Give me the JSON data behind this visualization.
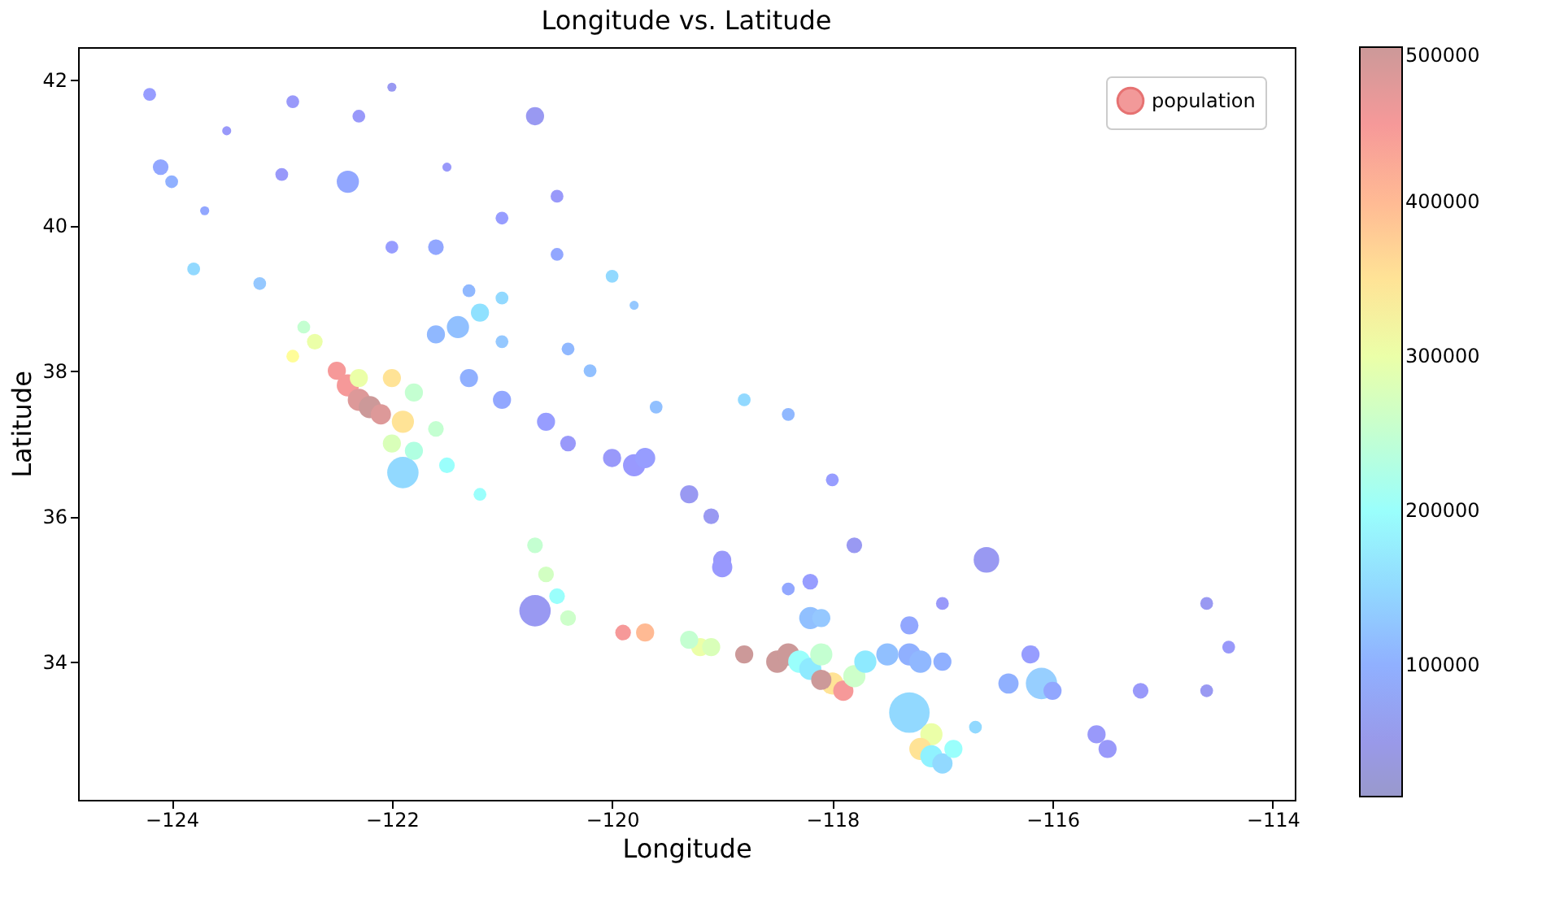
{
  "chart_data": {
    "type": "bubble",
    "title": "Longitude vs. Latitude",
    "xlabel": "Longitude",
    "ylabel": "Latitude",
    "xlim": [
      -124.85,
      -113.8
    ],
    "xticks": [
      -124,
      -122,
      -120,
      -118,
      -116,
      -114
    ],
    "ylim": [
      32.1,
      42.45
    ],
    "yticks": [
      34,
      36,
      38,
      40,
      42
    ],
    "clim": [
      15000,
      500000
    ],
    "cticks": [
      100000,
      200000,
      300000,
      400000,
      500000
    ],
    "grid": false,
    "legend": "top right",
    "marker": "circle",
    "series": [
      {
        "name": "population",
        "x": [
          -124.2,
          -124.1,
          -124.0,
          -123.8,
          -123.5,
          -123.2,
          -122.9,
          -122.4,
          -122.3,
          -122.0,
          -121.6,
          -121.5,
          -121.3,
          -120.7,
          -120.5,
          -120.0,
          -119.8,
          -121.4,
          -121.2,
          -121.6,
          -121.0,
          -121.0,
          -122.4,
          -122.3,
          -122.2,
          -122.1,
          -121.9,
          -122.0,
          -122.5,
          -122.7,
          -122.9,
          -122.3,
          -122.0,
          -121.8,
          -121.6,
          -122.8,
          -121.9,
          -121.8,
          -121.5,
          -121.2,
          -121.3,
          -121.0,
          -120.6,
          -120.4,
          -120.0,
          -119.8,
          -119.7,
          -119.3,
          -119.1,
          -119.0,
          -119.0,
          -119.6,
          -120.2,
          -120.4,
          -118.8,
          -118.4,
          -118.0,
          -117.8,
          -118.2,
          -118.4,
          -120.7,
          -120.6,
          -120.5,
          -120.7,
          -120.4,
          -119.9,
          -119.7,
          -119.2,
          -118.5,
          -118.4,
          -118.3,
          -118.2,
          -118.1,
          -118.0,
          -117.9,
          -117.8,
          -117.7,
          -117.5,
          -117.3,
          -117.2,
          -117.0,
          -118.2,
          -118.1,
          -117.3,
          -117.0,
          -116.6,
          -116.2,
          -116.1,
          -116.4,
          -116.0,
          -115.6,
          -115.5,
          -114.6,
          -114.6,
          -114.4,
          -115.2,
          -118.8,
          -118.1,
          -117.3,
          -117.1,
          -117.2,
          -117.1,
          -117.0,
          -116.9,
          -116.7,
          -119.3,
          -119.1,
          -123.0,
          -122.0,
          -121.0,
          -120.5,
          -123.7
        ],
        "values": [
          41.8,
          40.8,
          40.6,
          39.4,
          41.3,
          39.2,
          41.7,
          40.6,
          41.5,
          39.7,
          39.7,
          40.8,
          39.1,
          41.5,
          40.4,
          39.3,
          38.9,
          38.6,
          38.8,
          38.5,
          38.4,
          39.0,
          37.8,
          37.6,
          37.5,
          37.4,
          37.3,
          37.0,
          38.0,
          38.4,
          38.2,
          37.9,
          37.9,
          37.7,
          37.2,
          38.6,
          36.6,
          36.9,
          36.7,
          36.3,
          37.9,
          37.6,
          37.3,
          37.0,
          36.8,
          36.7,
          36.8,
          36.3,
          36.0,
          35.4,
          35.3,
          37.5,
          38.0,
          38.3,
          37.6,
          37.4,
          36.5,
          35.6,
          35.1,
          35.0,
          35.6,
          35.2,
          34.9,
          34.7,
          34.6,
          34.4,
          34.4,
          34.2,
          34.0,
          34.1,
          34.0,
          33.9,
          34.1,
          33.7,
          33.6,
          33.8,
          34.0,
          34.1,
          34.1,
          34.0,
          34.0,
          34.6,
          34.6,
          34.5,
          34.8,
          35.4,
          34.1,
          33.7,
          33.7,
          33.6,
          33.0,
          32.8,
          34.8,
          33.6,
          34.2,
          33.6,
          34.1,
          33.75,
          33.3,
          33.0,
          32.8,
          32.7,
          32.6,
          32.8,
          33.1,
          34.3,
          34.2,
          40.7,
          41.9,
          40.1,
          39.6,
          40.2
        ],
        "cvalues": [
          80000,
          90000,
          100000,
          150000,
          70000,
          130000,
          70000,
          90000,
          70000,
          80000,
          90000,
          70000,
          110000,
          60000,
          70000,
          150000,
          130000,
          120000,
          160000,
          110000,
          130000,
          150000,
          450000,
          480000,
          500000,
          480000,
          350000,
          280000,
          450000,
          300000,
          320000,
          300000,
          350000,
          250000,
          250000,
          250000,
          150000,
          230000,
          200000,
          200000,
          100000,
          90000,
          80000,
          70000,
          70000,
          75000,
          80000,
          60000,
          60000,
          70000,
          75000,
          120000,
          120000,
          110000,
          150000,
          110000,
          80000,
          60000,
          80000,
          90000,
          250000,
          270000,
          200000,
          60000,
          260000,
          450000,
          400000,
          300000,
          500000,
          500000,
          200000,
          170000,
          250000,
          350000,
          450000,
          260000,
          170000,
          120000,
          100000,
          110000,
          100000,
          120000,
          130000,
          90000,
          70000,
          60000,
          80000,
          140000,
          100000,
          90000,
          70000,
          70000,
          60000,
          60000,
          70000,
          70000,
          500000,
          500000,
          150000,
          300000,
          350000,
          180000,
          150000,
          200000,
          150000,
          250000,
          280000,
          70000,
          60000,
          80000,
          90000,
          90000
        ],
        "sizes": [
          0.1,
          0.15,
          0.1,
          0.1,
          0.05,
          0.1,
          0.1,
          0.3,
          0.1,
          0.1,
          0.15,
          0.05,
          0.1,
          0.2,
          0.1,
          0.1,
          0.05,
          0.3,
          0.2,
          0.2,
          0.1,
          0.1,
          0.3,
          0.3,
          0.3,
          0.25,
          0.3,
          0.2,
          0.2,
          0.15,
          0.1,
          0.2,
          0.2,
          0.2,
          0.15,
          0.1,
          0.6,
          0.2,
          0.15,
          0.1,
          0.2,
          0.2,
          0.2,
          0.15,
          0.2,
          0.3,
          0.25,
          0.2,
          0.15,
          0.2,
          0.25,
          0.1,
          0.1,
          0.1,
          0.1,
          0.1,
          0.1,
          0.15,
          0.15,
          0.1,
          0.15,
          0.15,
          0.15,
          0.6,
          0.15,
          0.15,
          0.2,
          0.2,
          0.3,
          0.3,
          0.3,
          0.3,
          0.3,
          0.3,
          0.25,
          0.3,
          0.3,
          0.3,
          0.3,
          0.3,
          0.2,
          0.3,
          0.2,
          0.2,
          0.1,
          0.4,
          0.2,
          0.6,
          0.25,
          0.2,
          0.2,
          0.2,
          0.1,
          0.1,
          0.1,
          0.15,
          0.2,
          0.25,
          1.0,
          0.3,
          0.3,
          0.3,
          0.25,
          0.2,
          0.1,
          0.2,
          0.2,
          0.1,
          0.05,
          0.1,
          0.1,
          0.05
        ]
      }
    ]
  }
}
